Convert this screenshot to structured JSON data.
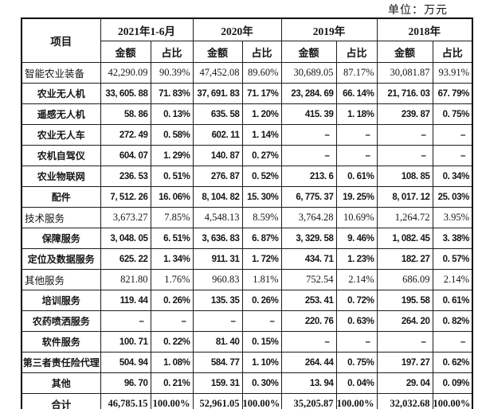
{
  "unit_label": "单位：万元",
  "table": {
    "item_header": "项目",
    "amount_label": "金额",
    "ratio_label": "占比",
    "col_groups": [
      "2021年1-6月",
      "2020年",
      "2019年",
      "2018年"
    ],
    "rows": [
      {
        "label": "智能农业装备",
        "variant": "serif",
        "cells": [
          "42,290.09",
          "90.39%",
          "47,452.08",
          "89.60%",
          "30,689.05",
          "87.17%",
          "30,081.87",
          "93.91%"
        ]
      },
      {
        "label": "农业无人机",
        "variant": "bold",
        "cells": [
          "33, 605. 88",
          "71. 83%",
          "37, 691. 83",
          "71. 17%",
          "23, 284. 69",
          "66. 14%",
          "21, 716. 03",
          "67. 79%"
        ]
      },
      {
        "label": "遥感无人机",
        "variant": "bold",
        "cells": [
          "58. 86",
          "0. 13%",
          "635. 58",
          "1. 20%",
          "415. 39",
          "1. 18%",
          "239. 87",
          "0. 75%"
        ]
      },
      {
        "label": "农业无人车",
        "variant": "bold",
        "cells": [
          "272. 49",
          "0. 58%",
          "602. 11",
          "1. 14%",
          "–",
          "–",
          "–",
          "–"
        ]
      },
      {
        "label": "农机自驾仪",
        "variant": "bold",
        "cells": [
          "604. 07",
          "1. 29%",
          "140. 87",
          "0. 27%",
          "–",
          "–",
          "–",
          "–"
        ]
      },
      {
        "label": "农业物联网",
        "variant": "bold",
        "cells": [
          "236. 53",
          "0. 51%",
          "276. 87",
          "0. 52%",
          "213. 6",
          "0. 61%",
          "108. 85",
          "0. 34%"
        ]
      },
      {
        "label": "配件",
        "variant": "bold",
        "cells": [
          "7, 512. 26",
          "16. 06%",
          "8, 104. 82",
          "15. 30%",
          "6, 775. 37",
          "19. 25%",
          "8, 017. 12",
          "25. 03%"
        ]
      },
      {
        "label": "技术服务",
        "variant": "serif",
        "cells": [
          "3,673.27",
          "7.85%",
          "4,548.13",
          "8.59%",
          "3,764.28",
          "10.69%",
          "1,264.72",
          "3.95%"
        ]
      },
      {
        "label": "保障服务",
        "variant": "bold",
        "cells": [
          "3, 048. 05",
          "6. 51%",
          "3, 636. 83",
          "6. 87%",
          "3, 329. 58",
          "9. 46%",
          "1, 082. 45",
          "3. 38%"
        ]
      },
      {
        "label": "定位及数据服务",
        "variant": "bold",
        "cells": [
          "625. 22",
          "1. 34%",
          "911. 31",
          "1. 72%",
          "434. 71",
          "1. 23%",
          "182. 27",
          "0. 57%"
        ]
      },
      {
        "label": "其他服务",
        "variant": "serif",
        "cells": [
          "821.80",
          "1.76%",
          "960.83",
          "1.81%",
          "752.54",
          "2.14%",
          "686.09",
          "2.14%"
        ]
      },
      {
        "label": "培训服务",
        "variant": "bold",
        "cells": [
          "119. 44",
          "0. 26%",
          "135. 35",
          "0. 26%",
          "253. 41",
          "0. 72%",
          "195. 58",
          "0. 61%"
        ]
      },
      {
        "label": "农药喷洒服务",
        "variant": "bold",
        "cells": [
          "–",
          "–",
          "–",
          "–",
          "220. 76",
          "0. 63%",
          "264. 20",
          "0. 82%"
        ]
      },
      {
        "label": "软件服务",
        "variant": "bold",
        "cells": [
          "100. 71",
          "0. 22%",
          "81. 40",
          "0. 15%",
          "–",
          "–",
          "–",
          "–"
        ]
      },
      {
        "label": "第三者责任险代理",
        "variant": "bold",
        "cells": [
          "504. 94",
          "1. 08%",
          "584. 77",
          "1. 10%",
          "264. 44",
          "0. 75%",
          "197. 27",
          "0. 62%"
        ]
      },
      {
        "label": "其他",
        "variant": "bold",
        "cells": [
          "96. 70",
          "0. 21%",
          "159. 31",
          "0. 30%",
          "13. 94",
          "0. 04%",
          "29. 04",
          "0. 09%"
        ]
      },
      {
        "label": "合计",
        "variant": "total",
        "cells": [
          "46,785.15",
          "100.00%",
          "52,961.05",
          "100.00%",
          "35,205.87",
          "100.00%",
          "32,032.68",
          "100.00%"
        ]
      }
    ]
  }
}
